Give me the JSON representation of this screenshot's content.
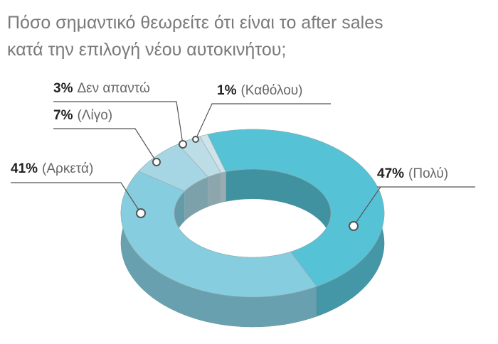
{
  "chart_data": {
    "type": "pie",
    "title": [
      "Πόσο σημαντικό θεωρείτε ότι είναι το after sales",
      "κατά την επιλογή νέου αυτοκινήτου;"
    ],
    "categories": [
      "(Πολύ)",
      "(Αρκετά)",
      "(Λίγο)",
      "Δεν απαντώ",
      "(Καθόλου)"
    ],
    "values": [
      47,
      41,
      7,
      3,
      1
    ],
    "value_labels": [
      "47%",
      "41%",
      "7%",
      "3%",
      "1%"
    ],
    "colors": [
      "#56c2d6",
      "#86cde0",
      "#a6d6e3",
      "#bcdde6",
      "#cfe4ea"
    ]
  }
}
